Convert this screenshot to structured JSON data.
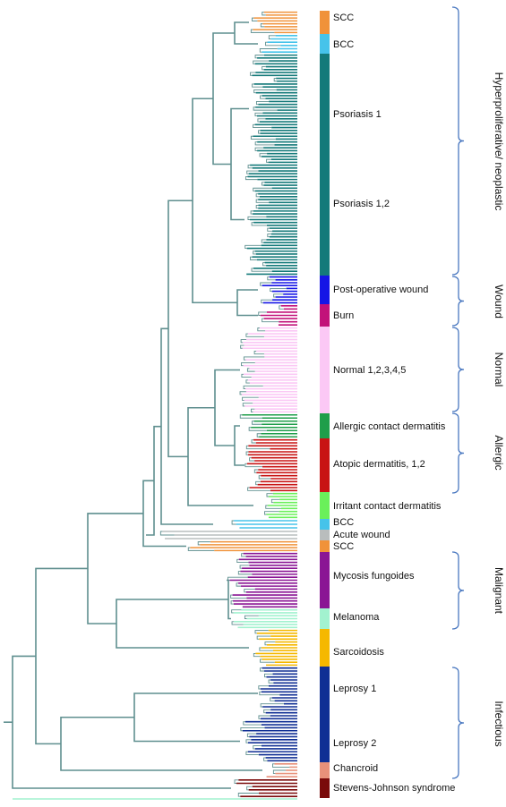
{
  "diagram": {
    "segments": [
      {
        "label": "SCC",
        "color": "#f0923a"
      },
      {
        "label": "BCC",
        "color": "#46c3ea"
      },
      {
        "label": "Psoriasis 1",
        "color": "#147a7a"
      },
      {
        "label": "Psoriasis 1,2",
        "color": "#147a7a"
      },
      {
        "label": "Post-operative wound",
        "color": "#1515e6"
      },
      {
        "label": "Burn",
        "color": "#c2127a"
      },
      {
        "label": "Normal 1,2,3,4,5",
        "color": "#fbc8f5"
      },
      {
        "label": "Allergic contact dermatitis",
        "color": "#1f9e4a"
      },
      {
        "label": "Atopic dermatitis, 1,2",
        "color": "#c81414"
      },
      {
        "label": "Irritant contact dermatitis",
        "color": "#6af05a"
      },
      {
        "label": "BCC",
        "color": "#46c3ea"
      },
      {
        "label": "Acute wound",
        "color": "#b9bdbd"
      },
      {
        "label": "SCC",
        "color": "#f0923a"
      },
      {
        "label": "Mycosis fungoides",
        "color": "#8a1594"
      },
      {
        "label": "Melanoma",
        "color": "#a2f2cf"
      },
      {
        "label": "Sarcoidosis",
        "color": "#f5b800"
      },
      {
        "label": "Leprosy 1",
        "color": "#102f94"
      },
      {
        "label": "Leprosy 2",
        "color": "#102f94"
      },
      {
        "label": "Chancroid",
        "color": "#e8917a"
      },
      {
        "label": "Stevens-Johnson syndrome",
        "color": "#7a0a0a"
      }
    ],
    "groups": [
      {
        "label": "Hyperproliferative/ neoplastic"
      },
      {
        "label": "Wound"
      },
      {
        "label": "Normal"
      },
      {
        "label": "Allergic"
      },
      {
        "label": "Malignant"
      },
      {
        "label": "Infectious"
      }
    ],
    "tree_color": "#5f8f8f"
  }
}
